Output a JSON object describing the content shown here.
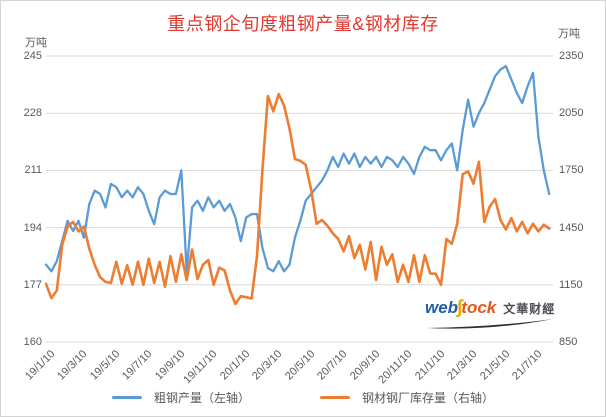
{
  "title": "重点钢企旬度粗钢产量&钢材库存",
  "colors": {
    "title": "#e03931",
    "series_blue": "#5B9BD5",
    "series_orange": "#ED7D31",
    "gridline": "#d9d9d9",
    "tick_text": "#595959"
  },
  "left_axis": {
    "unit": "万吨",
    "ticks": [
      245,
      228,
      211,
      194,
      177,
      160
    ],
    "min": 160,
    "max": 245
  },
  "right_axis": {
    "unit": "万吨",
    "ticks": [
      2350,
      2050,
      1750,
      1450,
      1150,
      850
    ],
    "min": 850,
    "max": 2350
  },
  "legend": [
    {
      "label": "粗钢产量（左轴）",
      "color": "#5B9BD5"
    },
    {
      "label": "钢材钢厂库存量（右轴）",
      "color": "#ED7D31"
    }
  ],
  "watermark": {
    "web": "web",
    "s": "∫",
    "tock": "tock",
    "cn": "文華财經"
  },
  "chart_data": {
    "type": "line",
    "title": "重点钢企旬度粗钢产量&钢材库存",
    "x_unit": "旬 (ten-day periods), 3 points per month",
    "points_per_label": 6,
    "x_tick_labels": [
      "19/1/10",
      "19/3/10",
      "19/5/10",
      "19/7/10",
      "19/9/10",
      "19/11/10",
      "20/1/10",
      "20/3/10",
      "20/5/10",
      "20/7/10",
      "20/9/10",
      "20/11/10",
      "21/1/10",
      "21/3/10",
      "21/5/10",
      "21/7/10"
    ],
    "grid": "horizontal-only",
    "legend_position": "bottom",
    "left_ylim": [
      160,
      245
    ],
    "right_ylim": [
      850,
      2350
    ],
    "series": [
      {
        "name": "粗钢产量（左轴）",
        "axis": "left",
        "color": "#5B9BD5",
        "width": 2.3,
        "values": [
          183,
          181,
          184,
          190,
          196,
          193,
          196,
          191,
          201,
          205,
          204,
          200,
          207,
          206,
          203,
          205,
          203,
          206,
          204,
          199,
          195,
          203,
          205,
          204,
          204,
          211,
          181,
          200,
          202,
          199,
          203,
          200,
          202,
          199,
          201,
          197,
          190,
          197,
          198,
          198,
          188,
          182,
          181,
          184,
          181,
          183,
          191,
          196,
          202,
          204,
          206,
          208,
          211,
          215,
          212,
          216,
          213,
          216,
          212,
          215,
          213,
          215,
          212,
          215,
          214,
          212,
          215,
          213,
          210,
          215,
          218,
          217,
          217,
          214,
          217,
          219,
          211,
          223,
          232,
          224,
          228,
          231,
          235,
          239,
          241,
          242,
          238,
          234,
          231,
          236,
          240,
          221,
          211,
          204
        ]
      },
      {
        "name": "钢材钢厂库存量（右轴）",
        "axis": "right",
        "color": "#ED7D31",
        "width": 2.6,
        "values": [
          1155,
          1080,
          1120,
          1360,
          1455,
          1480,
          1430,
          1455,
          1340,
          1255,
          1190,
          1165,
          1160,
          1271,
          1155,
          1253,
          1150,
          1271,
          1150,
          1287,
          1160,
          1270,
          1140,
          1300,
          1165,
          1310,
          1175,
          1335,
          1180,
          1255,
          1280,
          1150,
          1240,
          1225,
          1120,
          1050,
          1090,
          1085,
          1078,
          1300,
          1750,
          2140,
          2060,
          2150,
          2090,
          1970,
          1810,
          1800,
          1780,
          1650,
          1470,
          1490,
          1460,
          1420,
          1390,
          1325,
          1405,
          1290,
          1360,
          1230,
          1375,
          1175,
          1350,
          1255,
          1310,
          1165,
          1255,
          1165,
          1305,
          1165,
          1305,
          1210,
          1208,
          1150,
          1390,
          1365,
          1470,
          1730,
          1745,
          1680,
          1795,
          1480,
          1560,
          1600,
          1490,
          1440,
          1500,
          1430,
          1480,
          1420,
          1470,
          1430,
          1465,
          1445
        ]
      }
    ]
  }
}
